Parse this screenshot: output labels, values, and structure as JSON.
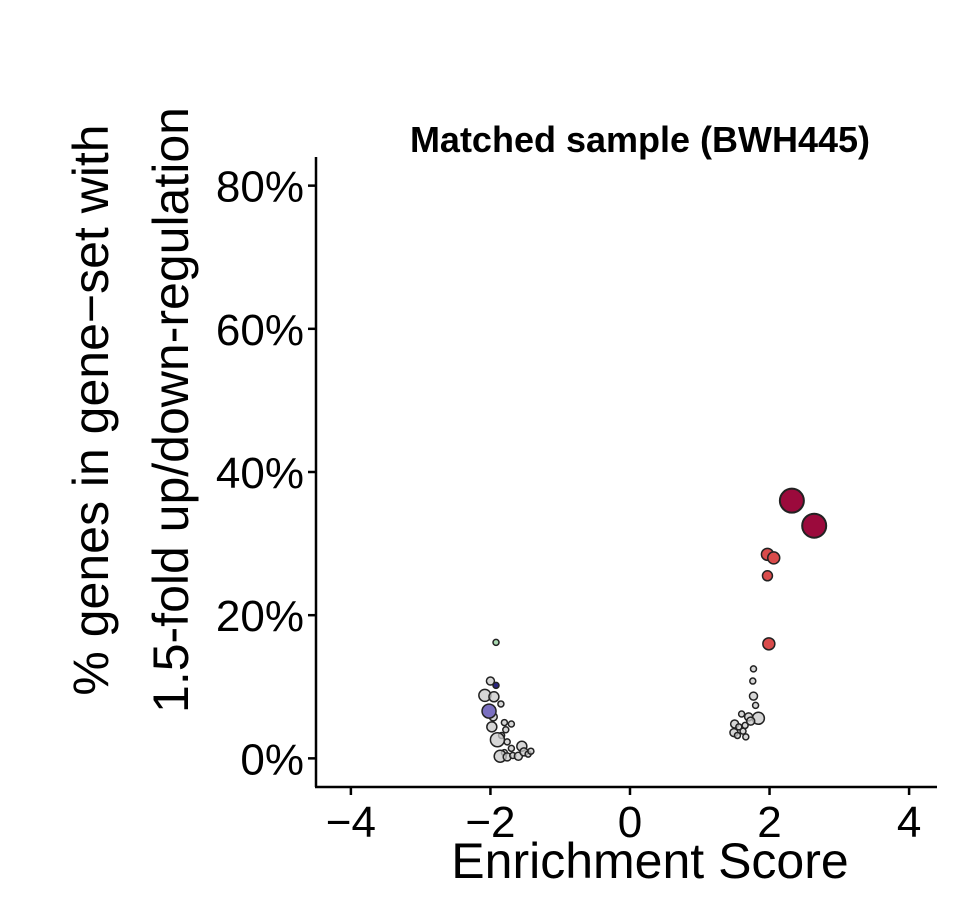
{
  "chart_data": {
    "type": "scatter",
    "title": "Matched sample (BWH445)",
    "xlabel": "Enrichment Score",
    "ylabel_lines": [
      "% genes in gene−set with",
      "1.5-fold up/down-regulation"
    ],
    "xlim": [
      -4.5,
      4.4
    ],
    "ylim": [
      -4,
      84
    ],
    "x_ticks": [
      -4,
      -2,
      0,
      2,
      4
    ],
    "x_tick_labels": [
      "−4",
      "−2",
      "0",
      "2",
      "4"
    ],
    "y_ticks": [
      0,
      20,
      40,
      60,
      80
    ],
    "y_tick_labels": [
      "0%",
      "20%",
      "40%",
      "60%",
      "80%"
    ],
    "grid": false,
    "legend": "none",
    "colors": {
      "up_dark": "#9b0a3c",
      "up_light": "#d94b4b",
      "down_blue": "#7a6fc0",
      "down_navy": "#2a2580",
      "down_green": "#a8d8b0",
      "nonsig": "#c8c8c8",
      "outline": "#222222"
    },
    "points": [
      {
        "x": 2.32,
        "y": 36.0,
        "s": 12,
        "color": "up_dark"
      },
      {
        "x": 2.64,
        "y": 32.5,
        "s": 12,
        "color": "up_dark"
      },
      {
        "x": 1.97,
        "y": 28.5,
        "s": 6,
        "color": "up_light"
      },
      {
        "x": 2.06,
        "y": 28.0,
        "s": 6,
        "color": "up_light"
      },
      {
        "x": 1.97,
        "y": 25.5,
        "s": 5,
        "color": "up_light"
      },
      {
        "x": 1.99,
        "y": 16.0,
        "s": 6,
        "color": "up_light"
      },
      {
        "x": -1.92,
        "y": 16.2,
        "s": 3,
        "color": "down_green"
      },
      {
        "x": -1.92,
        "y": 10.2,
        "s": 3,
        "color": "down_navy"
      },
      {
        "x": -2.02,
        "y": 6.6,
        "s": 7,
        "color": "down_blue"
      },
      {
        "x": -2.0,
        "y": 10.8,
        "s": 4,
        "color": "nonsig"
      },
      {
        "x": -2.08,
        "y": 8.8,
        "s": 6,
        "color": "nonsig"
      },
      {
        "x": -1.95,
        "y": 8.6,
        "s": 5,
        "color": "nonsig"
      },
      {
        "x": -1.85,
        "y": 7.6,
        "s": 3,
        "color": "nonsig"
      },
      {
        "x": -1.96,
        "y": 5.8,
        "s": 4,
        "color": "nonsig"
      },
      {
        "x": -1.8,
        "y": 5.0,
        "s": 3,
        "color": "nonsig"
      },
      {
        "x": -1.7,
        "y": 4.8,
        "s": 3,
        "color": "nonsig"
      },
      {
        "x": -1.78,
        "y": 4.0,
        "s": 3,
        "color": "nonsig"
      },
      {
        "x": -1.98,
        "y": 4.4,
        "s": 5,
        "color": "nonsig"
      },
      {
        "x": -1.84,
        "y": 3.2,
        "s": 3,
        "color": "nonsig"
      },
      {
        "x": -1.9,
        "y": 2.6,
        "s": 7,
        "color": "nonsig"
      },
      {
        "x": -1.76,
        "y": 2.3,
        "s": 3,
        "color": "nonsig"
      },
      {
        "x": -1.7,
        "y": 1.4,
        "s": 3,
        "color": "nonsig"
      },
      {
        "x": -1.8,
        "y": 0.8,
        "s": 3,
        "color": "nonsig"
      },
      {
        "x": -1.86,
        "y": 0.3,
        "s": 6,
        "color": "nonsig"
      },
      {
        "x": -1.76,
        "y": 0.2,
        "s": 4,
        "color": "nonsig"
      },
      {
        "x": -1.68,
        "y": 0.4,
        "s": 3,
        "color": "nonsig"
      },
      {
        "x": -1.6,
        "y": 0.3,
        "s": 4,
        "color": "nonsig"
      },
      {
        "x": -1.55,
        "y": 1.7,
        "s": 5,
        "color": "nonsig"
      },
      {
        "x": -1.52,
        "y": 0.9,
        "s": 4,
        "color": "nonsig"
      },
      {
        "x": -1.46,
        "y": 0.6,
        "s": 3,
        "color": "nonsig"
      },
      {
        "x": -1.42,
        "y": 1.0,
        "s": 3,
        "color": "nonsig"
      },
      {
        "x": 1.77,
        "y": 12.5,
        "s": 3,
        "color": "nonsig"
      },
      {
        "x": 1.76,
        "y": 10.8,
        "s": 3,
        "color": "nonsig"
      },
      {
        "x": 1.77,
        "y": 8.7,
        "s": 4,
        "color": "nonsig"
      },
      {
        "x": 1.8,
        "y": 7.4,
        "s": 3,
        "color": "nonsig"
      },
      {
        "x": 1.6,
        "y": 6.2,
        "s": 3,
        "color": "nonsig"
      },
      {
        "x": 1.7,
        "y": 5.8,
        "s": 4,
        "color": "nonsig"
      },
      {
        "x": 1.84,
        "y": 5.6,
        "s": 6,
        "color": "nonsig"
      },
      {
        "x": 1.73,
        "y": 5.2,
        "s": 4,
        "color": "nonsig"
      },
      {
        "x": 1.5,
        "y": 4.8,
        "s": 4,
        "color": "nonsig"
      },
      {
        "x": 1.56,
        "y": 4.4,
        "s": 3,
        "color": "nonsig"
      },
      {
        "x": 1.65,
        "y": 4.6,
        "s": 3,
        "color": "nonsig"
      },
      {
        "x": 1.49,
        "y": 3.6,
        "s": 4,
        "color": "nonsig"
      },
      {
        "x": 1.62,
        "y": 3.8,
        "s": 3,
        "color": "nonsig"
      },
      {
        "x": 1.54,
        "y": 3.2,
        "s": 3,
        "color": "nonsig"
      },
      {
        "x": 1.66,
        "y": 3.0,
        "s": 3,
        "color": "nonsig"
      }
    ]
  }
}
